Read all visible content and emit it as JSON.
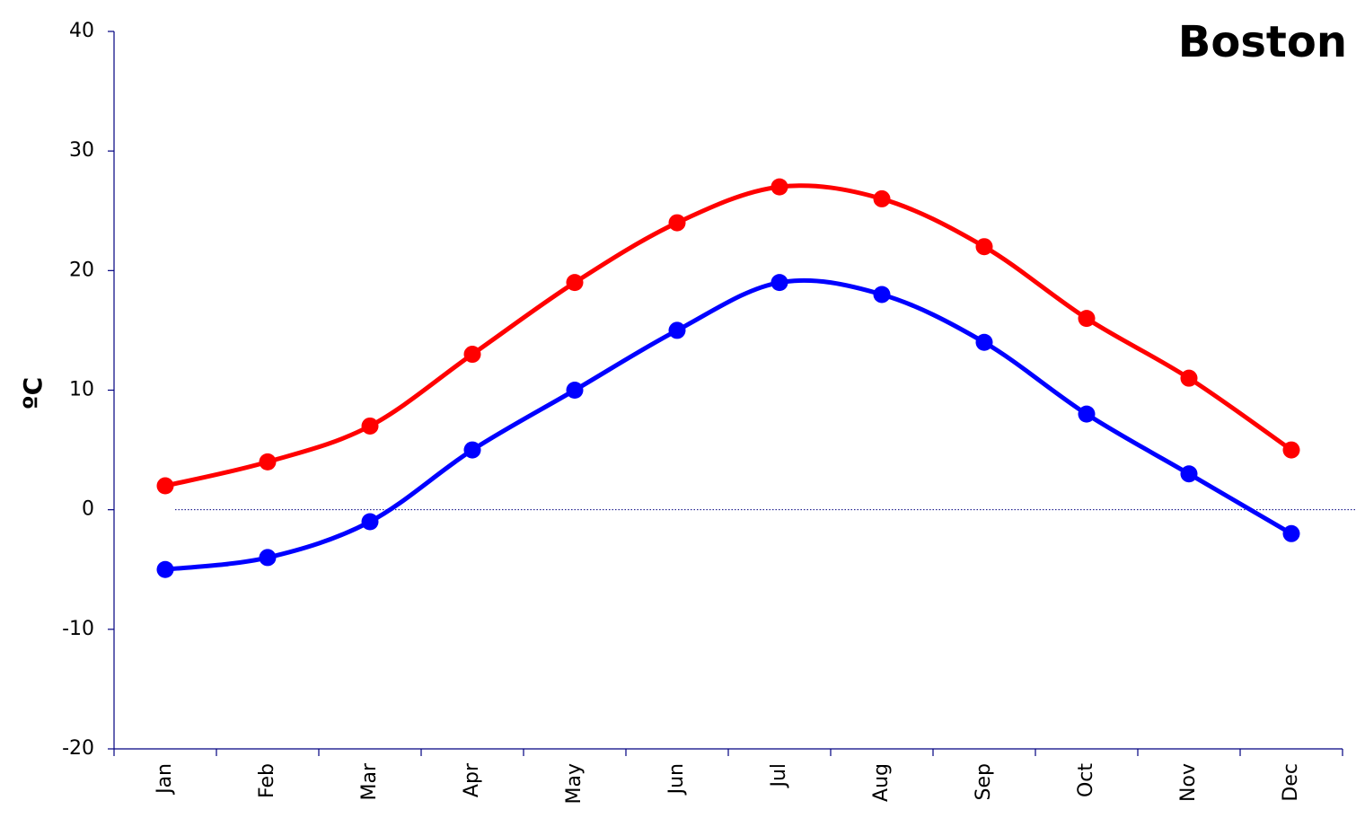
{
  "chart_data": {
    "type": "line",
    "title": "Boston",
    "ylabel": "ºC",
    "categories": [
      "Jan",
      "Feb",
      "Mar",
      "Apr",
      "May",
      "Jun",
      "Jul",
      "Aug",
      "Sep",
      "Oct",
      "Nov",
      "Dec"
    ],
    "series": [
      {
        "color": "#ff0000",
        "values": [
          2,
          4,
          7,
          13,
          19,
          24,
          27,
          26,
          22,
          16,
          11,
          5
        ]
      },
      {
        "color": "#0000ff",
        "values": [
          -5,
          -4,
          -1,
          5,
          10,
          15,
          19,
          18,
          14,
          8,
          3,
          -2
        ]
      }
    ],
    "ylim": [
      -20,
      40
    ],
    "yticks": [
      -20,
      -10,
      0,
      10,
      20,
      30,
      40
    ],
    "grid": false,
    "smooth": true
  }
}
